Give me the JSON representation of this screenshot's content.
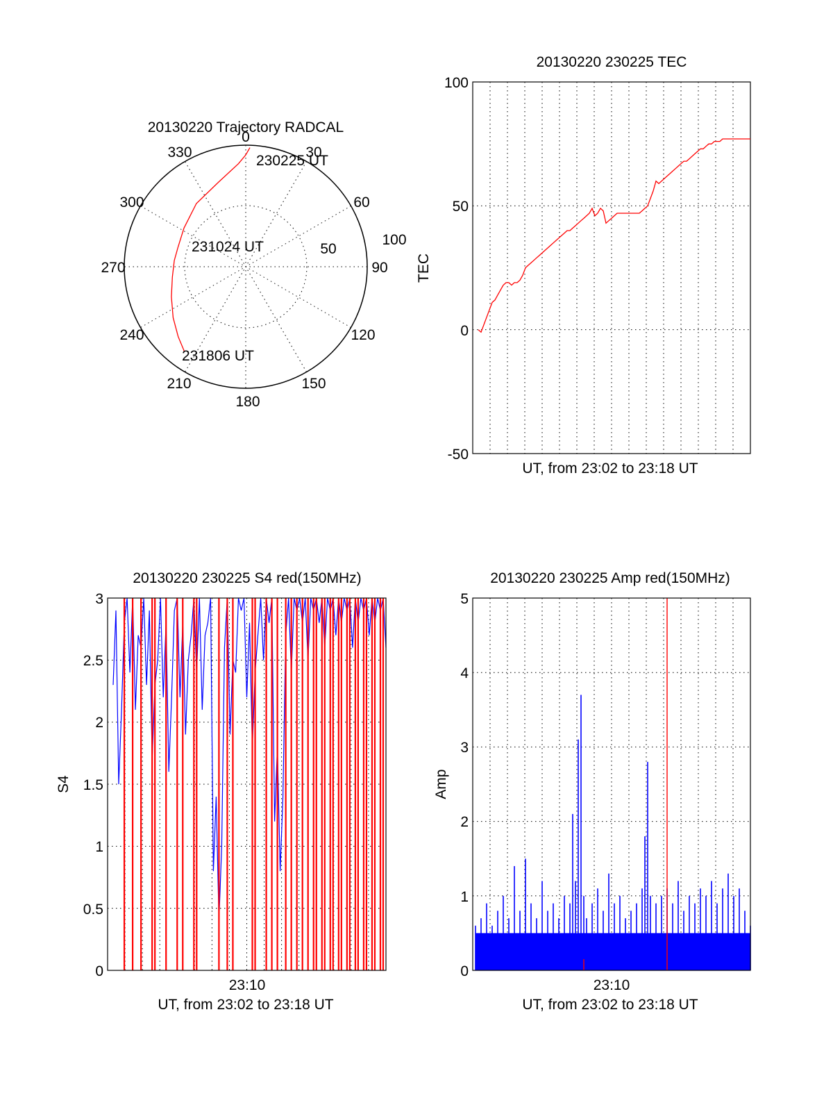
{
  "colors": {
    "primary_trace": "#ff0000",
    "secondary_trace": "#0000ff",
    "grid": "#000000"
  },
  "chart_data": [
    {
      "type": "polar",
      "title": "20130220 Trajectory RADCAL",
      "angle_labels": [
        "0",
        "30",
        "60",
        "90",
        "120",
        "150",
        "180",
        "210",
        "240",
        "270",
        "300",
        "330"
      ],
      "radial_ticks": [
        "50",
        "100"
      ],
      "grid": true,
      "trajectory": {
        "color": "#ff0000",
        "points": [
          {
            "azimuth": 2,
            "zenith": 98
          },
          {
            "azimuth": 0,
            "zenith": 92
          },
          {
            "azimuth": 356,
            "zenith": 85
          },
          {
            "azimuth": 342,
            "zenith": 73
          },
          {
            "azimuth": 322,
            "zenith": 66
          },
          {
            "azimuth": 302,
            "zenith": 60
          },
          {
            "azimuth": 286,
            "zenith": 58
          },
          {
            "azimuth": 275,
            "zenith": 59
          },
          {
            "azimuth": 262,
            "zenith": 61
          },
          {
            "azimuth": 248,
            "zenith": 66
          },
          {
            "azimuth": 235,
            "zenith": 73
          },
          {
            "azimuth": 224,
            "zenith": 80
          },
          {
            "azimuth": 216,
            "zenith": 86
          }
        ]
      },
      "annotations": [
        "230225 UT",
        "231024 UT",
        "231806 UT"
      ]
    },
    {
      "type": "line",
      "title": "20130220 230225 TEC",
      "xlabel": "UT, from 23:02 to 23:18 UT",
      "ylabel": "TEC",
      "ylim": [
        -50,
        100
      ],
      "yticks": [
        "-50",
        "0",
        "50",
        "100"
      ],
      "xlim": [
        0,
        100
      ],
      "grid": true,
      "series": [
        {
          "color": "#ff0000",
          "x": [
            2,
            3,
            4,
            5,
            6,
            7,
            8,
            9,
            10,
            11,
            12,
            13,
            14,
            15,
            16,
            17,
            18,
            19,
            20,
            21,
            22,
            23,
            24,
            25,
            26,
            27,
            28,
            29,
            30,
            31,
            32,
            33,
            34,
            35,
            36,
            37,
            38,
            39,
            40,
            41,
            42,
            43,
            44,
            45,
            46,
            47,
            48,
            49,
            50,
            51,
            52,
            53,
            54,
            55,
            56,
            57,
            58,
            59,
            60,
            61,
            62,
            63,
            64,
            65,
            66,
            67,
            68,
            69,
            70,
            71,
            72,
            73,
            74,
            75,
            76,
            77,
            78,
            79,
            80,
            81,
            82,
            83,
            84,
            85,
            86,
            87,
            88,
            89,
            90,
            91,
            92,
            93,
            94,
            95,
            96,
            97,
            98,
            99,
            100
          ],
          "y": [
            0,
            -1,
            2,
            5,
            8,
            11,
            12,
            14,
            16,
            18,
            19,
            19,
            18,
            19,
            19,
            20,
            22,
            25,
            26,
            27,
            28,
            29,
            30,
            31,
            32,
            33,
            34,
            35,
            36,
            37,
            38,
            39,
            40,
            40,
            41,
            42,
            43,
            44,
            45,
            46,
            47,
            49,
            46,
            47,
            49,
            48,
            43,
            44,
            45,
            46,
            47,
            47,
            47,
            47,
            47,
            47,
            47,
            47,
            47,
            48,
            49,
            50,
            53,
            56,
            60,
            59,
            60,
            61,
            62,
            63,
            64,
            65,
            66,
            67,
            68,
            68,
            69,
            70,
            71,
            72,
            73,
            73,
            74,
            75,
            75,
            76,
            76,
            76,
            77,
            77,
            77,
            77,
            77,
            77,
            77,
            77,
            77,
            77,
            77
          ]
        }
      ]
    },
    {
      "type": "line",
      "title": "20130220 230225 S4 red(150MHz)",
      "xlabel": "UT, from 23:02 to 23:18 UT",
      "ylabel": "S4",
      "ylim": [
        0,
        3
      ],
      "yticks": [
        "0",
        "0.5",
        "1",
        "1.5",
        "2",
        "2.5",
        "3"
      ],
      "xtick_label": "23:10",
      "xlim": [
        0,
        100
      ],
      "grid": true,
      "series": [
        {
          "color": "#0000ff",
          "x": [
            2,
            4,
            6,
            8,
            10,
            12,
            14,
            16,
            18,
            20,
            22,
            24,
            26,
            28,
            30,
            32,
            34,
            36,
            38,
            40,
            42,
            44,
            46,
            48,
            50,
            52,
            54,
            56,
            58,
            60,
            62,
            64,
            66,
            68,
            70,
            72,
            74,
            76,
            78,
            80,
            82,
            84,
            86,
            88,
            90,
            92,
            94,
            96,
            98,
            100
          ],
          "y": [
            2.3,
            1.5,
            2.8,
            2.4,
            2.1,
            2.6,
            2.3,
            1.7,
            2.5,
            2.2,
            1.6,
            2.9,
            2.2,
            1.9,
            2.7,
            2.4,
            2.1,
            2.8,
            0.8,
            0.4,
            2.6,
            1.9,
            2.4,
            2.9,
            2.2,
            1.8,
            2.7,
            2.5,
            2.8,
            1.2,
            0.8,
            2.7,
            2.4,
            2.9,
            2.8,
            2.5,
            2.9,
            2.8,
            2.6,
            2.9,
            2.7,
            2.8,
            2.9,
            2.6,
            2.8,
            2.9,
            2.7,
            2.8,
            2.9,
            2.6
          ]
        },
        {
          "color": "#ff0000",
          "x": [
            6,
            9,
            12,
            16,
            17,
            21,
            25,
            27,
            31,
            32,
            40,
            43,
            45,
            52,
            53,
            57,
            59,
            61,
            64,
            66,
            68,
            70,
            72,
            74,
            75,
            77,
            78,
            80,
            81,
            83,
            84,
            86,
            87,
            89,
            90,
            92,
            93,
            95,
            96,
            98,
            99
          ],
          "y": [
            3,
            3,
            3,
            3,
            3,
            3,
            3,
            3,
            3,
            3,
            3,
            3,
            3,
            3,
            3,
            3,
            3,
            3,
            3,
            3,
            3,
            3,
            3,
            3,
            3,
            3,
            3,
            3,
            3,
            3,
            3,
            3,
            3,
            3,
            3,
            3,
            3,
            3,
            3,
            3,
            3
          ]
        }
      ]
    },
    {
      "type": "line",
      "title": "20130220 230225 Amp red(150MHz)",
      "xlabel": "UT, from 23:02 to 23:18 UT",
      "ylabel": "Amp",
      "ylim": [
        0,
        5
      ],
      "yticks": [
        "0",
        "1",
        "2",
        "3",
        "4",
        "5"
      ],
      "xtick_label": "23:10",
      "xlim": [
        0,
        100
      ],
      "grid": true,
      "series": [
        {
          "color": "#0000ff",
          "x": [
            1,
            3,
            5,
            7,
            9,
            11,
            13,
            15,
            17,
            19,
            21,
            23,
            25,
            27,
            29,
            31,
            33,
            35,
            36,
            37,
            38,
            39,
            40,
            41,
            43,
            45,
            47,
            49,
            51,
            53,
            55,
            57,
            59,
            61,
            62,
            63,
            64,
            66,
            68,
            70,
            72,
            74,
            76,
            78,
            80,
            82,
            84,
            86,
            88,
            90,
            92,
            94,
            96,
            98,
            100
          ],
          "y": [
            0.6,
            0.7,
            0.9,
            0.6,
            0.8,
            1.0,
            0.7,
            1.4,
            0.8,
            1.5,
            0.9,
            0.7,
            1.2,
            0.8,
            0.9,
            0.7,
            1.0,
            0.9,
            2.1,
            1.2,
            3.1,
            3.7,
            1.0,
            0.7,
            0.9,
            1.1,
            0.8,
            1.3,
            0.9,
            1.0,
            0.7,
            0.8,
            0.9,
            1.1,
            1.8,
            2.8,
            1.0,
            0.9,
            1.0,
            1.1,
            0.9,
            1.2,
            0.8,
            1.0,
            0.9,
            1.1,
            1.0,
            1.2,
            0.9,
            1.1,
            1.3,
            1.0,
            1.1,
            0.8,
            0.6
          ]
        },
        {
          "color": "#ff0000",
          "x": [
            40,
            70
          ],
          "y": [
            0.15,
            5
          ]
        }
      ]
    }
  ]
}
